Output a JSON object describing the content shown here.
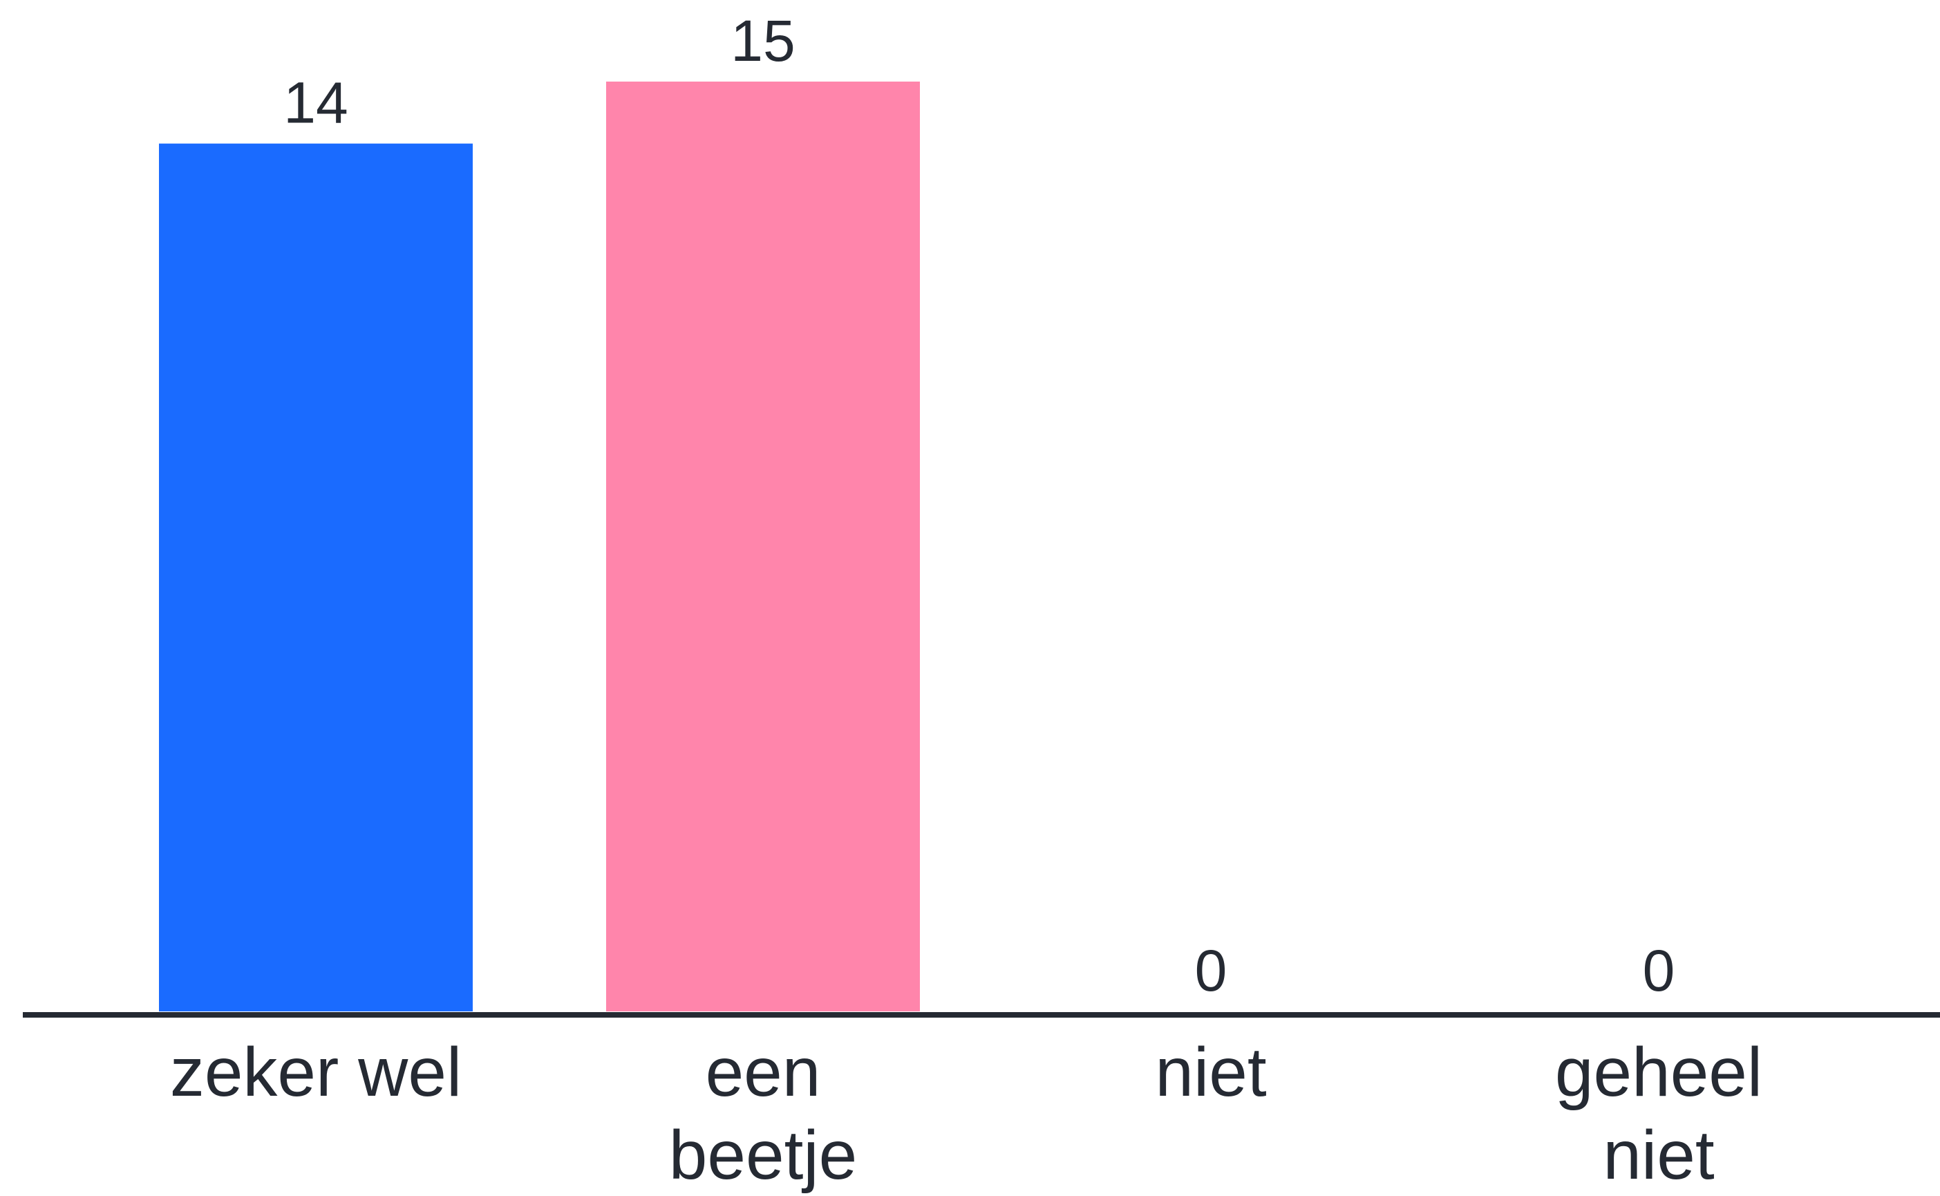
{
  "chart_data": {
    "type": "bar",
    "title": "",
    "xlabel": "",
    "ylabel": "",
    "categories": [
      [
        "zeker wel"
      ],
      [
        "een",
        "beetje"
      ],
      [
        "niet"
      ],
      [
        "geheel",
        "niet"
      ]
    ],
    "values": [
      14,
      15,
      0,
      0
    ],
    "value_labels": [
      "14",
      "15",
      "0",
      "0"
    ],
    "colors": [
      "#1a6bff",
      "#ff85ab",
      "#e0e0e0",
      "#e0e0e0"
    ],
    "axis_color": "#252a33",
    "text_color": "#252a33",
    "ylim": [
      0,
      15
    ],
    "grid": false,
    "legend": "none"
  }
}
